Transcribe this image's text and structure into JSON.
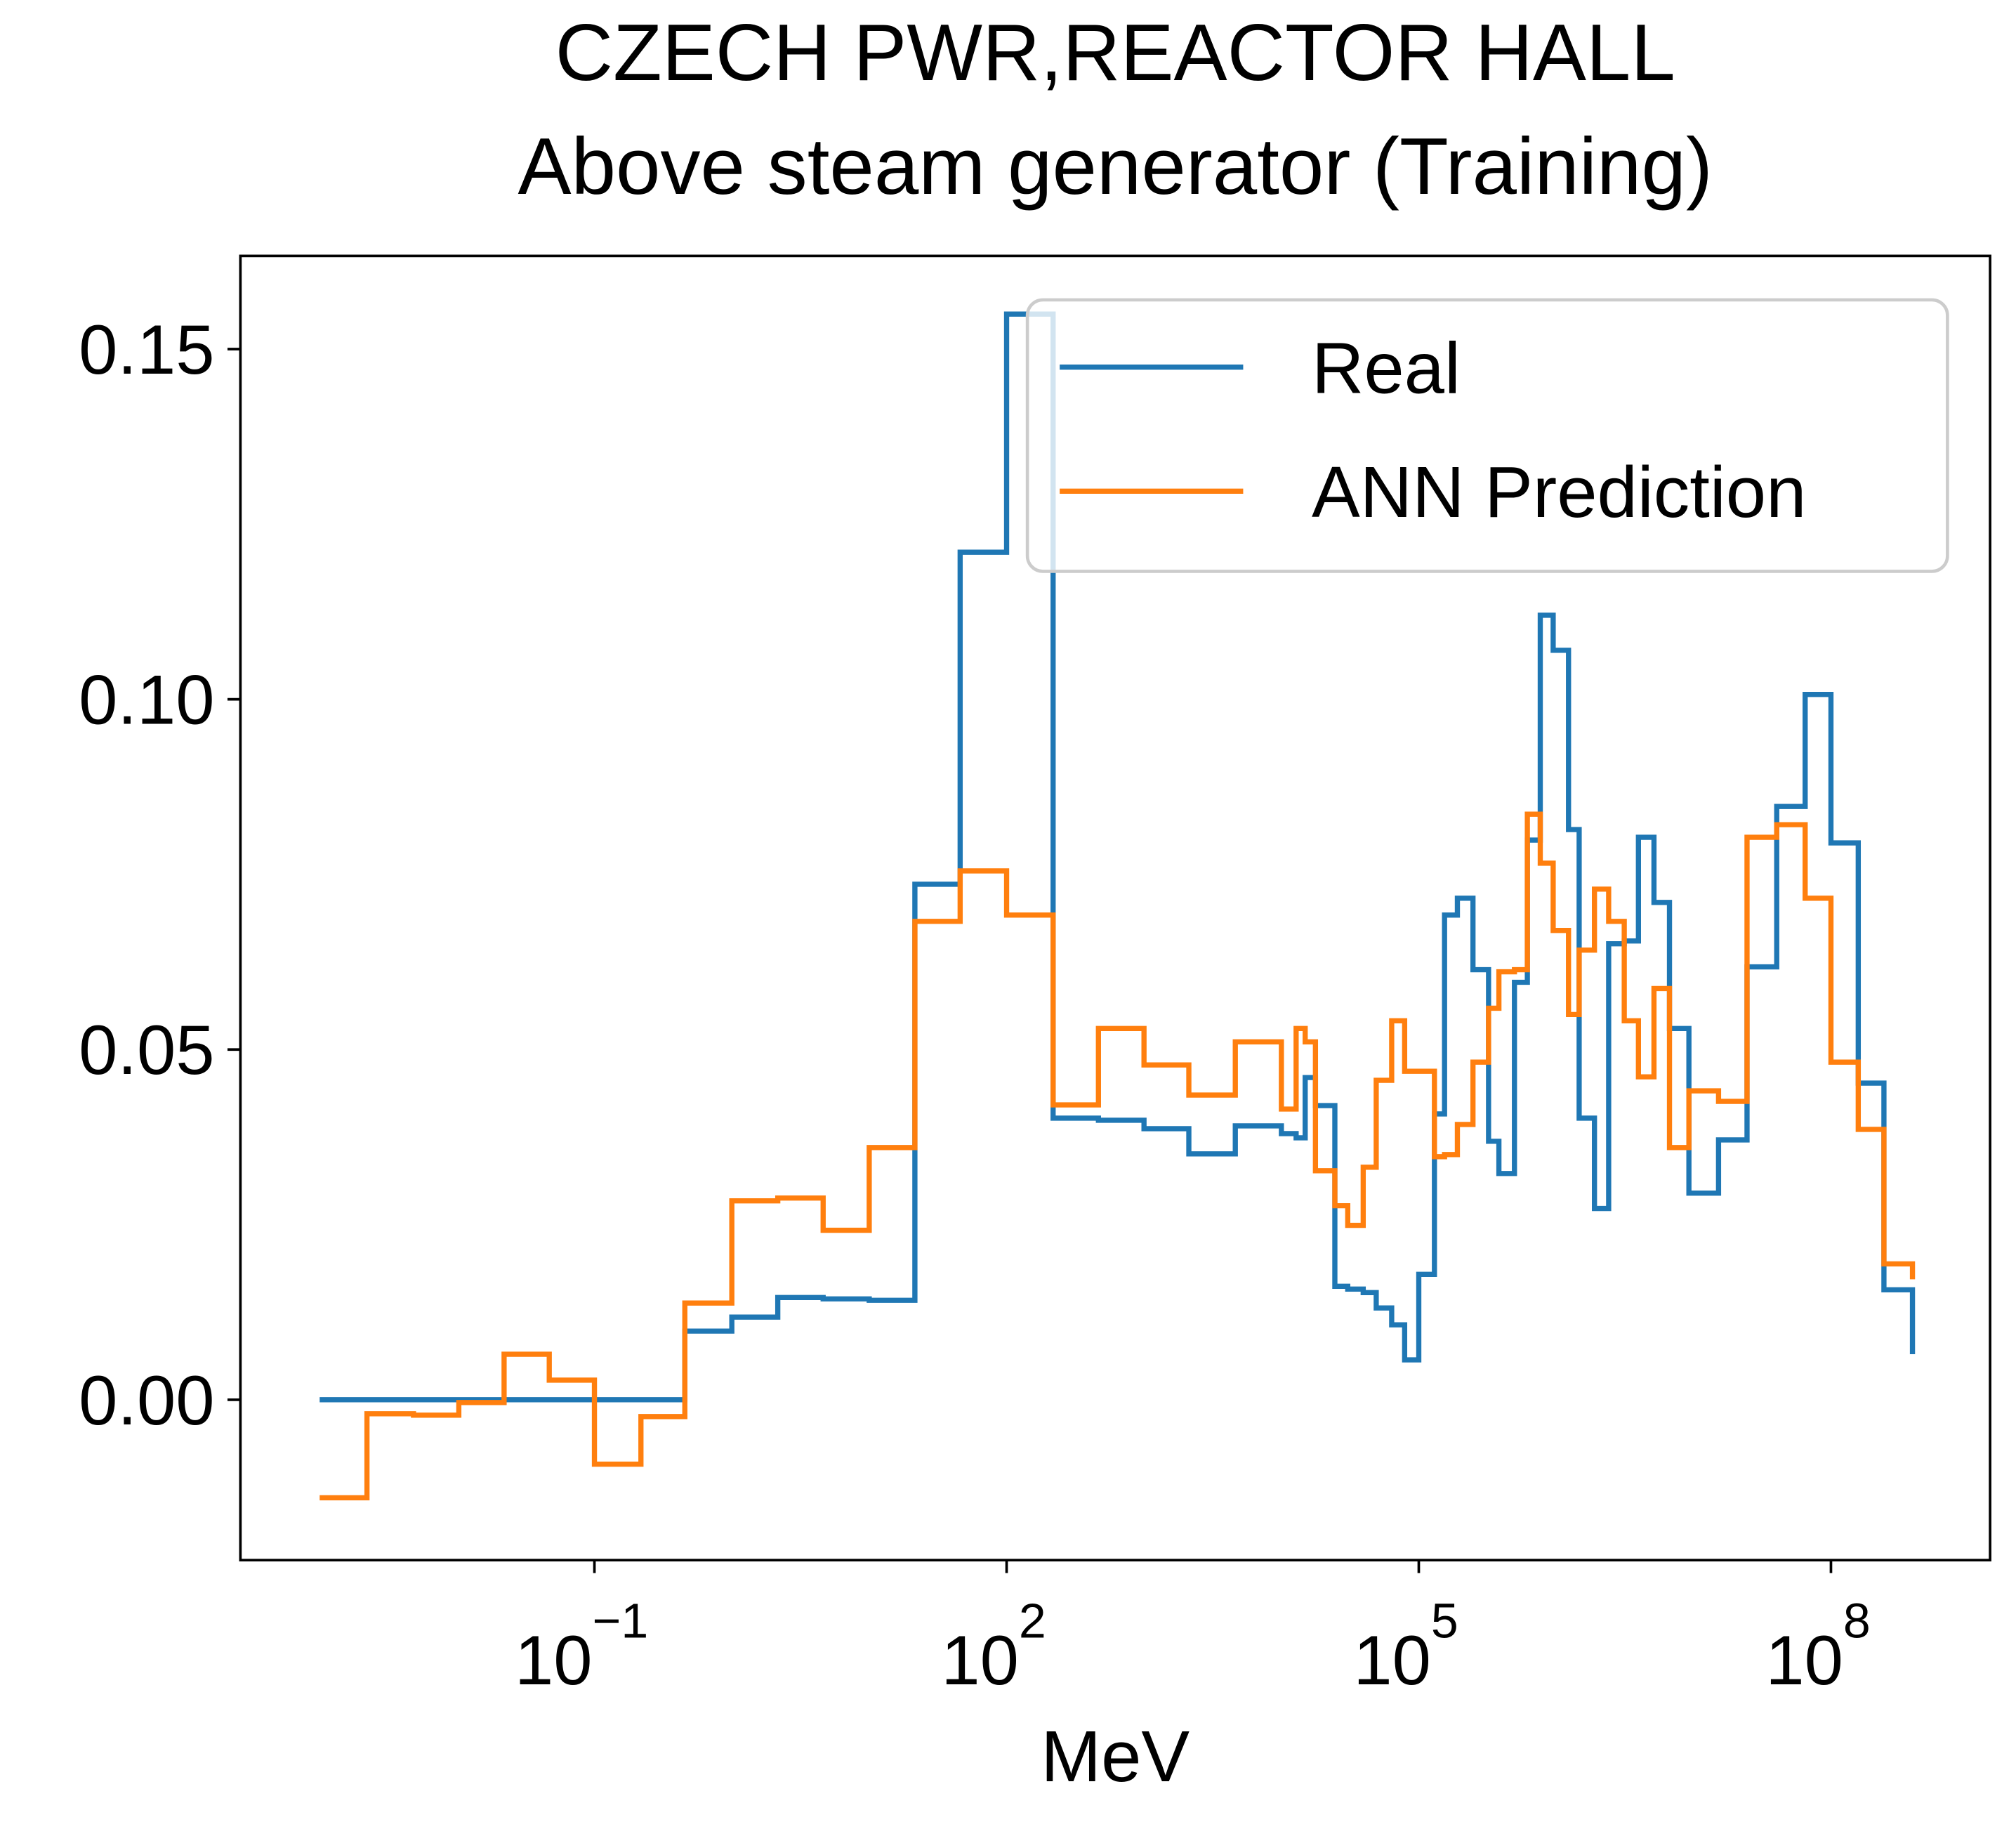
{
  "chart_data": {
    "type": "step",
    "title": [
      "CZECH PWR,REACTOR HALL",
      "Above steam generator (Training)"
    ],
    "x_label": "MeV",
    "x_scale": "log",
    "x": [
      0.001,
      0.00221,
      0.00482,
      0.0103,
      0.022,
      0.0469,
      0.1,
      0.218,
      0.455,
      1,
      2.16,
      4.62,
      10,
      21.5,
      45.9,
      100,
      218,
      466,
      1000,
      2120,
      4620,
      10000,
      12800,
      14900,
      17700,
      24500,
      30400,
      39400,
      49000,
      63500,
      78900,
      100000,
      130000,
      154000,
      191000,
      248000,
      322000,
      383000,
      497000,
      617000,
      766000,
      951000,
      1230000,
      1470000,
      1900000,
      2410000,
      3130000,
      3970000,
      5150000,
      6680000,
      9250000,
      15200000,
      24500000,
      40300000,
      64900000,
      100000000,
      158000000,
      243000000,
      392000000
    ],
    "series": [
      {
        "name": "Real",
        "color": "#1f77b4",
        "values": [
          0,
          0,
          0,
          0,
          0,
          0,
          0,
          0,
          0.0098,
          0.0118,
          0.0146,
          0.0144,
          0.0142,
          0.0736,
          0.121,
          0.155,
          0.0402,
          0.0399,
          0.0387,
          0.0351,
          0.0391,
          0.038,
          0.0374,
          0.046,
          0.042,
          0.0162,
          0.0158,
          0.0153,
          0.0131,
          0.0107,
          0.0057,
          0.0179,
          0.0408,
          0.0692,
          0.0716,
          0.0614,
          0.0369,
          0.0323,
          0.0596,
          0.0799,
          0.112,
          0.107,
          0.0814,
          0.0402,
          0.0273,
          0.0651,
          0.0655,
          0.0803,
          0.071,
          0.053,
          0.0295,
          0.0371,
          0.0618,
          0.0847,
          0.1007,
          0.0795,
          0.0452,
          0.0157,
          0.0065
        ]
      },
      {
        "name": "ANN Prediction",
        "color": "#ff7f0e",
        "values": [
          -0.014,
          -0.002,
          -0.0022,
          -0.0004,
          0.0065,
          0.0028,
          -0.0092,
          -0.0024,
          0.0138,
          0.0284,
          0.0288,
          0.0242,
          0.036,
          0.0683,
          0.0755,
          0.0692,
          0.0421,
          0.053,
          0.0478,
          0.0435,
          0.0511,
          0.0415,
          0.053,
          0.0511,
          0.0327,
          0.0277,
          0.0249,
          0.0332,
          0.0456,
          0.0541,
          0.0469,
          0.0469,
          0.0347,
          0.035,
          0.0393,
          0.0482,
          0.0559,
          0.0611,
          0.0614,
          0.0836,
          0.0766,
          0.067,
          0.055,
          0.0642,
          0.0729,
          0.0683,
          0.0541,
          0.0461,
          0.0587,
          0.036,
          0.0441,
          0.0426,
          0.0803,
          0.0821,
          0.0716,
          0.0482,
          0.0386,
          0.0194,
          0.0172
        ]
      }
    ],
    "xlim": [
      0.000265,
      1440000000
    ],
    "xticks": [
      {
        "value": 0.1,
        "label": "10",
        "exponent": "−1"
      },
      {
        "value": 100,
        "label": "10",
        "exponent": "2"
      },
      {
        "value": 100000,
        "label": "10",
        "exponent": "5"
      },
      {
        "value": 100000000,
        "label": "10",
        "exponent": "8"
      }
    ],
    "ylim": [
      -0.0229,
      0.1633
    ],
    "yticks": [
      {
        "value": 0,
        "label": "0.00"
      },
      0.05,
      {
        "value": 0.1,
        "label": "0.10"
      },
      0.15
    ],
    "grid": false,
    "legend": "upper right"
  }
}
